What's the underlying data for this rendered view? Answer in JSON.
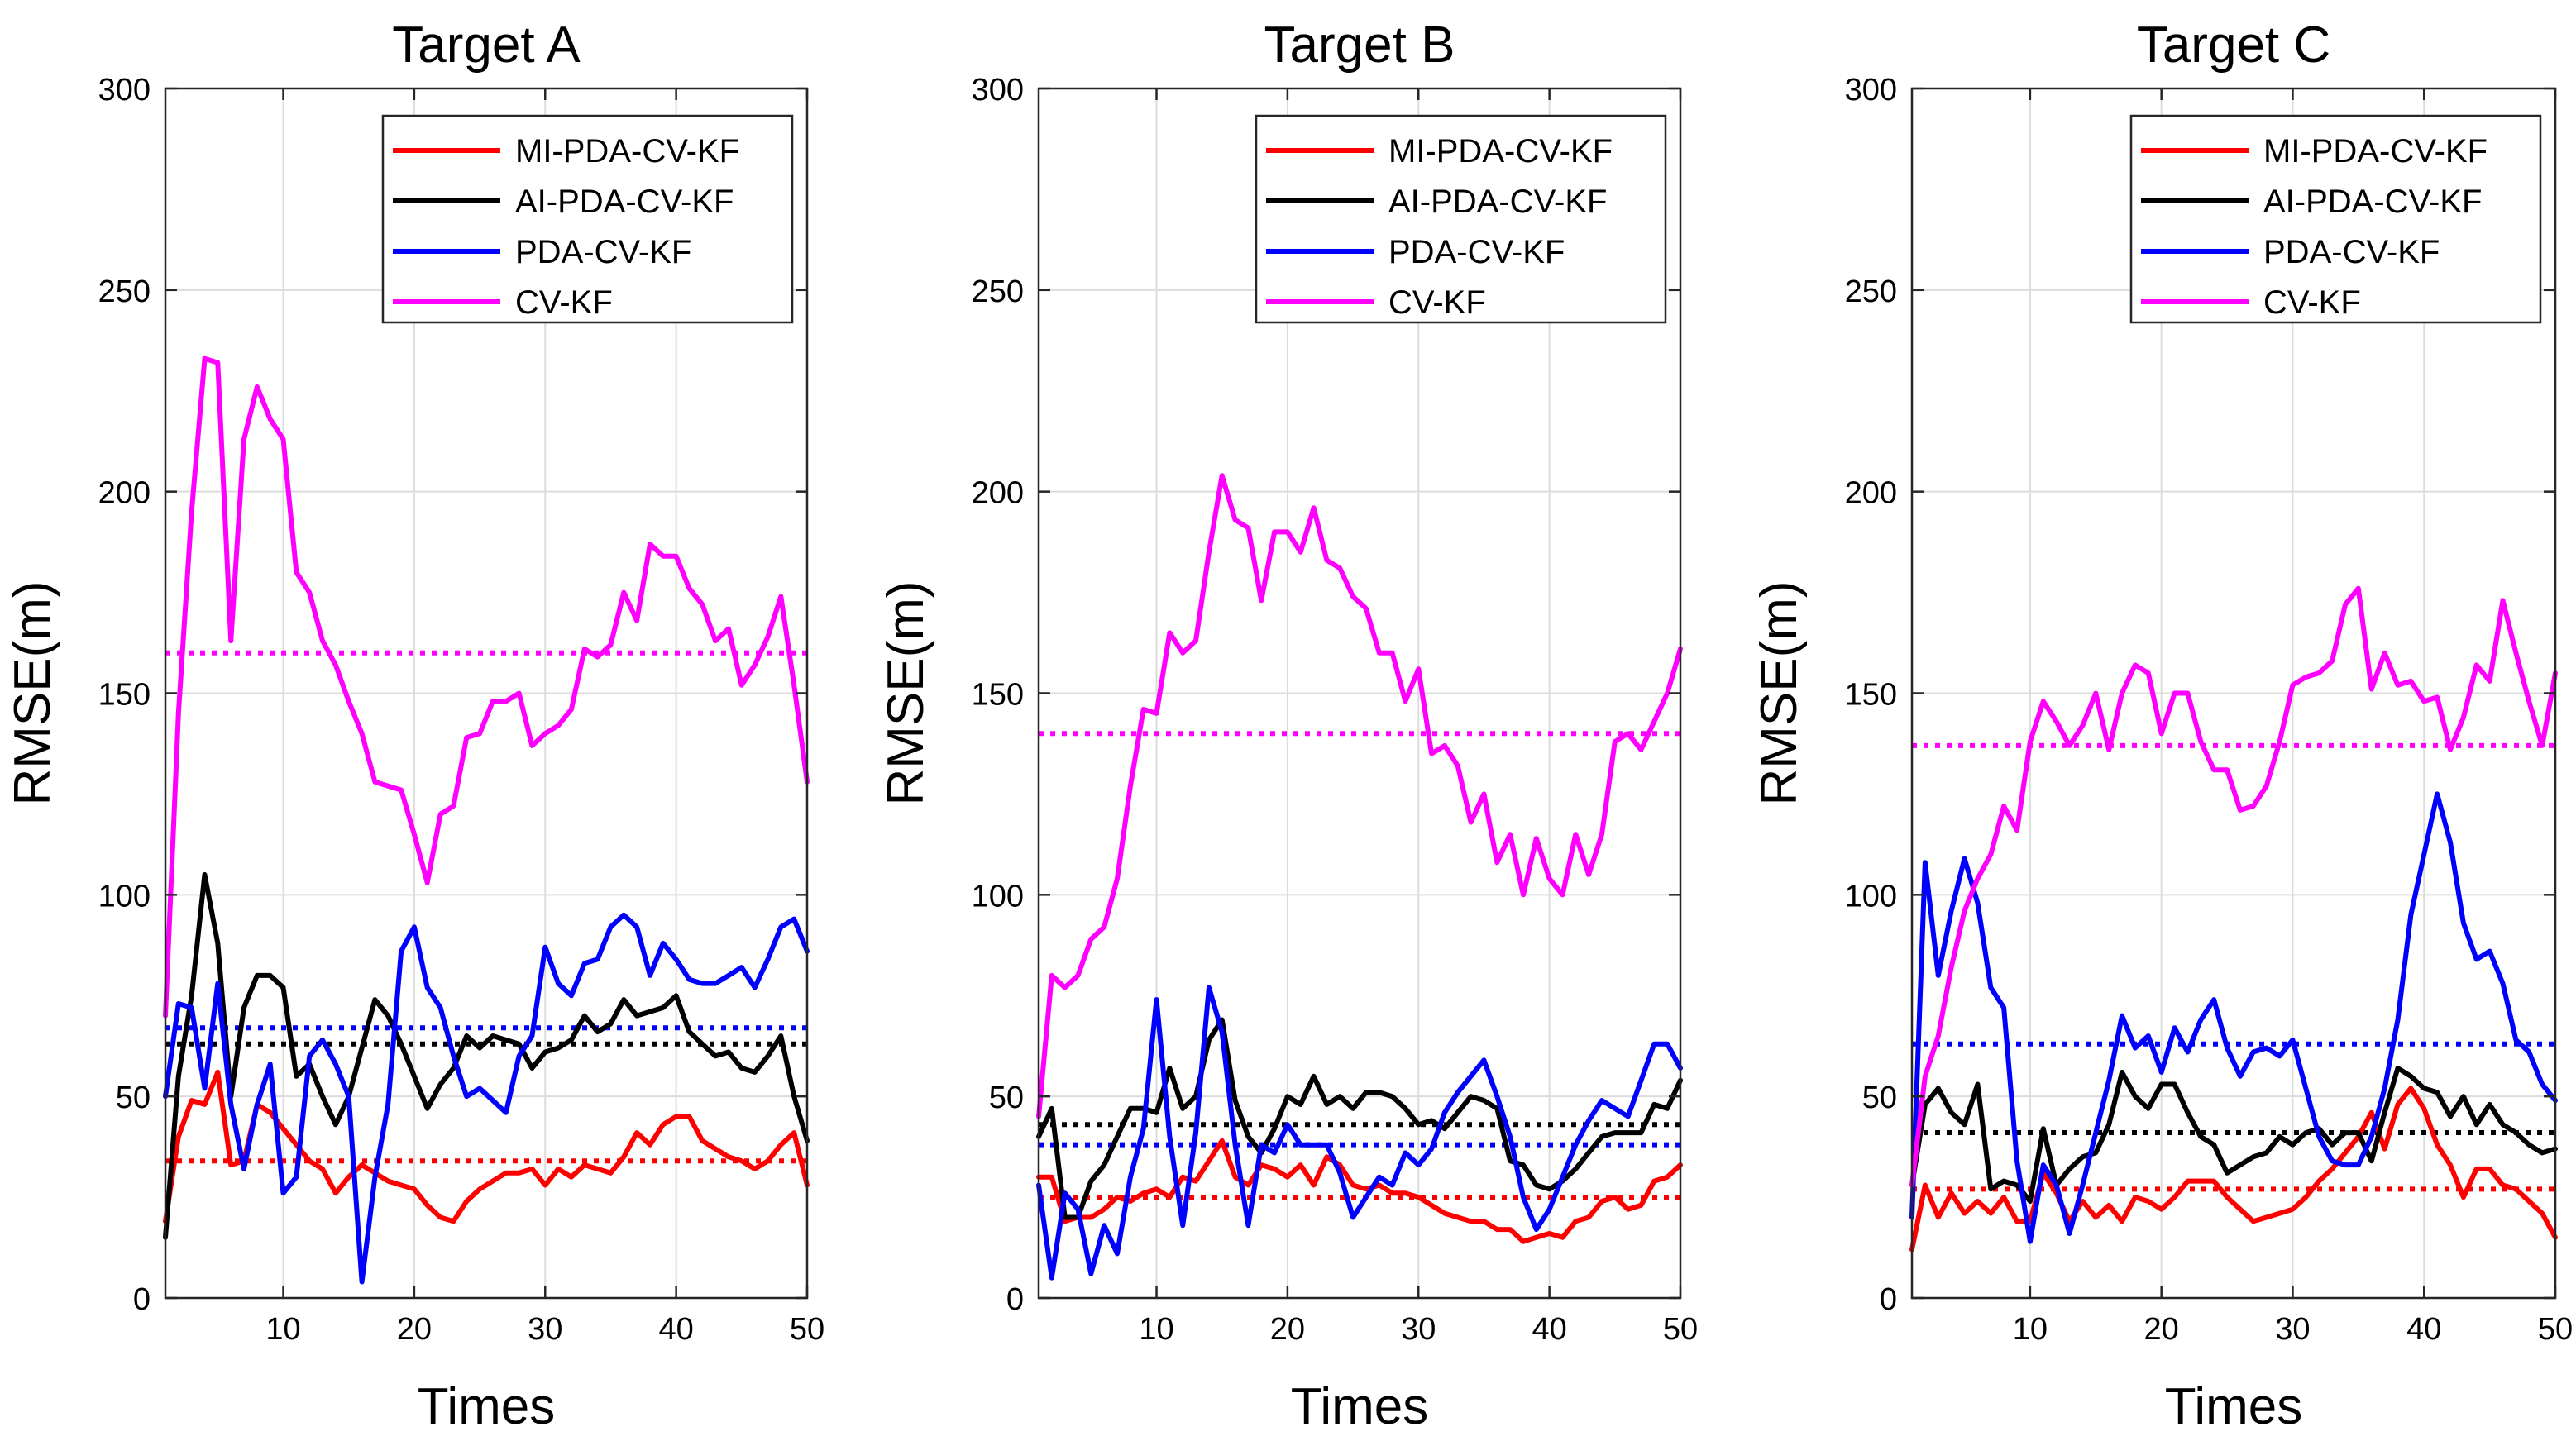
{
  "figure": {
    "ylabel": "RMSE(m)",
    "xlabel": "Times"
  },
  "colors": {
    "MI": "#ff0000",
    "AI": "#000000",
    "PDA": "#0000ff",
    "CV": "#ff00ff",
    "grid": "#dcdcdc",
    "axis": "#262626"
  },
  "chart_data": [
    {
      "type": "line",
      "title": "Target A",
      "xlabel": "Times",
      "ylabel": "RMSE(m)",
      "xlim": [
        1,
        50
      ],
      "ylim": [
        0,
        300
      ],
      "xticks": [
        10,
        20,
        30,
        40,
        50
      ],
      "yticks": [
        0,
        50,
        100,
        150,
        200,
        250,
        300
      ],
      "grid": true,
      "legend_position": "top-right",
      "series": [
        {
          "name": "MI-PDA-CV-KF",
          "color": "#ff0000",
          "style": "solid",
          "values": [
            19,
            40,
            49,
            48,
            56,
            33,
            34,
            48,
            46,
            42,
            38,
            34,
            32,
            26,
            30,
            33,
            31,
            29,
            28,
            27,
            23,
            20,
            19,
            24,
            27,
            29,
            31,
            31,
            32,
            28,
            32,
            30,
            33,
            32,
            31,
            35,
            41,
            38,
            43,
            45,
            45,
            39,
            37,
            35,
            34,
            32,
            34,
            38,
            41,
            28
          ]
        },
        {
          "name": "AI-PDA-CV-KF",
          "color": "#000000",
          "style": "solid",
          "values": [
            15,
            55,
            75,
            105,
            88,
            50,
            72,
            80,
            80,
            77,
            55,
            58,
            50,
            43,
            50,
            62,
            74,
            70,
            63,
            55,
            47,
            53,
            57,
            65,
            62,
            65,
            64,
            63,
            57,
            61,
            62,
            64,
            70,
            66,
            68,
            74,
            70,
            71,
            72,
            75,
            66,
            63,
            60,
            61,
            57,
            56,
            60,
            65,
            50,
            39
          ]
        },
        {
          "name": "PDA-CV-KF",
          "color": "#0000ff",
          "style": "solid",
          "values": [
            50,
            73,
            72,
            52,
            78,
            48,
            32,
            48,
            58,
            26,
            30,
            60,
            64,
            58,
            50,
            4,
            30,
            48,
            86,
            92,
            77,
            72,
            60,
            50,
            52,
            49,
            46,
            60,
            65,
            87,
            78,
            75,
            83,
            84,
            92,
            95,
            92,
            80,
            88,
            84,
            79,
            78,
            78,
            80,
            82,
            77,
            84,
            92,
            94,
            86
          ]
        },
        {
          "name": "CV-KF",
          "color": "#ff00ff",
          "style": "solid",
          "values": [
            70,
            145,
            195,
            233,
            232,
            163,
            213,
            226,
            218,
            213,
            180,
            175,
            163,
            157,
            148,
            140,
            128,
            127,
            126,
            115,
            103,
            120,
            122,
            139,
            140,
            148,
            148,
            150,
            137,
            140,
            142,
            146,
            161,
            159,
            162,
            175,
            168,
            187,
            184,
            184,
            176,
            172,
            163,
            166,
            152,
            157,
            164,
            174,
            152,
            128
          ]
        },
        {
          "name": "MI-PDA-CV-KF (mean)",
          "color": "#ff0000",
          "style": "dotted",
          "value": 34
        },
        {
          "name": "AI-PDA-CV-KF (mean)",
          "color": "#000000",
          "style": "dotted",
          "value": 63
        },
        {
          "name": "PDA-CV-KF (mean)",
          "color": "#0000ff",
          "style": "dotted",
          "value": 67
        },
        {
          "name": "CV-KF (mean)",
          "color": "#ff00ff",
          "style": "dotted",
          "value": 160
        }
      ]
    },
    {
      "type": "line",
      "title": "Target B",
      "xlabel": "Times",
      "ylabel": "RMSE(m)",
      "xlim": [
        1,
        50
      ],
      "ylim": [
        0,
        300
      ],
      "xticks": [
        10,
        20,
        30,
        40,
        50
      ],
      "yticks": [
        0,
        50,
        100,
        150,
        200,
        250,
        300
      ],
      "grid": true,
      "legend_position": "top-right",
      "series": [
        {
          "name": "MI-PDA-CV-KF",
          "color": "#ff0000",
          "style": "solid",
          "values": [
            30,
            30,
            19,
            20,
            20,
            22,
            25,
            24,
            26,
            27,
            25,
            30,
            29,
            34,
            39,
            30,
            28,
            33,
            32,
            30,
            33,
            28,
            35,
            33,
            28,
            27,
            28,
            26,
            26,
            25,
            23,
            21,
            20,
            19,
            19,
            17,
            17,
            14,
            15,
            16,
            15,
            19,
            20,
            24,
            25,
            22,
            23,
            29,
            30,
            33
          ]
        },
        {
          "name": "AI-PDA-CV-KF",
          "color": "#000000",
          "style": "solid",
          "values": [
            40,
            47,
            20,
            20,
            29,
            33,
            40,
            47,
            47,
            46,
            57,
            47,
            50,
            64,
            69,
            49,
            40,
            36,
            42,
            50,
            48,
            55,
            48,
            50,
            47,
            51,
            51,
            50,
            47,
            43,
            44,
            42,
            46,
            50,
            49,
            47,
            34,
            33,
            28,
            27,
            29,
            32,
            36,
            40,
            41,
            41,
            41,
            48,
            47,
            54
          ]
        },
        {
          "name": "PDA-CV-KF",
          "color": "#0000ff",
          "style": "solid",
          "values": [
            28,
            5,
            26,
            22,
            6,
            18,
            11,
            30,
            42,
            74,
            40,
            18,
            41,
            77,
            66,
            38,
            18,
            38,
            36,
            43,
            38,
            38,
            38,
            31,
            20,
            25,
            30,
            28,
            36,
            33,
            37,
            46,
            51,
            55,
            59,
            50,
            40,
            25,
            17,
            22,
            30,
            38,
            44,
            49,
            47,
            45,
            54,
            63,
            63,
            57
          ]
        },
        {
          "name": "CV-KF",
          "color": "#ff00ff",
          "style": "solid",
          "values": [
            45,
            80,
            77,
            80,
            89,
            92,
            104,
            127,
            146,
            145,
            165,
            160,
            163,
            185,
            204,
            193,
            191,
            173,
            190,
            190,
            185,
            196,
            183,
            181,
            174,
            171,
            160,
            160,
            148,
            156,
            135,
            137,
            132,
            118,
            125,
            108,
            115,
            100,
            114,
            104,
            100,
            115,
            105,
            115,
            138,
            140,
            136,
            143,
            150,
            161
          ]
        },
        {
          "name": "MI-PDA-CV-KF (mean)",
          "color": "#ff0000",
          "style": "dotted",
          "value": 25
        },
        {
          "name": "AI-PDA-CV-KF (mean)",
          "color": "#000000",
          "style": "dotted",
          "value": 43
        },
        {
          "name": "PDA-CV-KF (mean)",
          "color": "#0000ff",
          "style": "dotted",
          "value": 38
        },
        {
          "name": "CV-KF (mean)",
          "color": "#ff00ff",
          "style": "dotted",
          "value": 140
        }
      ]
    },
    {
      "type": "line",
      "title": "Target C",
      "xlabel": "Times",
      "ylabel": "RMSE(m)",
      "xlim": [
        1,
        50
      ],
      "ylim": [
        0,
        300
      ],
      "xticks": [
        10,
        20,
        30,
        40,
        50
      ],
      "yticks": [
        0,
        50,
        100,
        150,
        200,
        250,
        300
      ],
      "grid": true,
      "legend_position": "top-right",
      "series": [
        {
          "name": "MI-PDA-CV-KF",
          "color": "#ff0000",
          "style": "solid",
          "values": [
            12,
            28,
            20,
            26,
            21,
            24,
            21,
            25,
            19,
            19,
            31,
            26,
            19,
            24,
            20,
            23,
            19,
            25,
            24,
            22,
            25,
            29,
            29,
            29,
            25,
            22,
            19,
            20,
            21,
            22,
            25,
            29,
            32,
            36,
            40,
            46,
            37,
            48,
            52,
            47,
            38,
            33,
            25,
            32,
            32,
            28,
            27,
            24,
            21,
            15
          ]
        },
        {
          "name": "AI-PDA-CV-KF",
          "color": "#000000",
          "style": "solid",
          "values": [
            28,
            48,
            52,
            46,
            43,
            53,
            27,
            29,
            28,
            24,
            42,
            28,
            32,
            35,
            36,
            43,
            56,
            50,
            47,
            53,
            53,
            46,
            40,
            38,
            31,
            33,
            35,
            36,
            40,
            38,
            41,
            42,
            38,
            41,
            41,
            34,
            46,
            57,
            55,
            52,
            51,
            45,
            50,
            43,
            48,
            43,
            41,
            38,
            36,
            37
          ]
        },
        {
          "name": "PDA-CV-KF",
          "color": "#0000ff",
          "style": "solid",
          "values": [
            20,
            108,
            80,
            96,
            109,
            98,
            77,
            72,
            34,
            14,
            33,
            28,
            16,
            28,
            41,
            54,
            70,
            62,
            65,
            56,
            67,
            61,
            69,
            74,
            62,
            55,
            61,
            62,
            60,
            64,
            52,
            40,
            34,
            33,
            33,
            40,
            52,
            69,
            95,
            110,
            125,
            113,
            93,
            84,
            86,
            78,
            64,
            61,
            53,
            49
          ]
        },
        {
          "name": "CV-KF",
          "color": "#ff00ff",
          "style": "solid",
          "values": [
            28,
            55,
            65,
            82,
            96,
            104,
            110,
            122,
            116,
            138,
            148,
            143,
            137,
            142,
            150,
            136,
            150,
            157,
            155,
            140,
            150,
            150,
            138,
            131,
            131,
            121,
            122,
            127,
            138,
            152,
            154,
            155,
            158,
            172,
            176,
            151,
            160,
            152,
            153,
            148,
            149,
            136,
            144,
            157,
            153,
            173,
            160,
            148,
            137,
            155
          ]
        },
        {
          "name": "MI-PDA-CV-KF (mean)",
          "color": "#ff0000",
          "style": "dotted",
          "value": 27
        },
        {
          "name": "AI-PDA-CV-KF (mean)",
          "color": "#000000",
          "style": "dotted",
          "value": 41
        },
        {
          "name": "PDA-CV-KF (mean)",
          "color": "#0000ff",
          "style": "dotted",
          "value": 63
        },
        {
          "name": "CV-KF (mean)",
          "color": "#ff00ff",
          "style": "dotted",
          "value": 137
        }
      ]
    }
  ]
}
